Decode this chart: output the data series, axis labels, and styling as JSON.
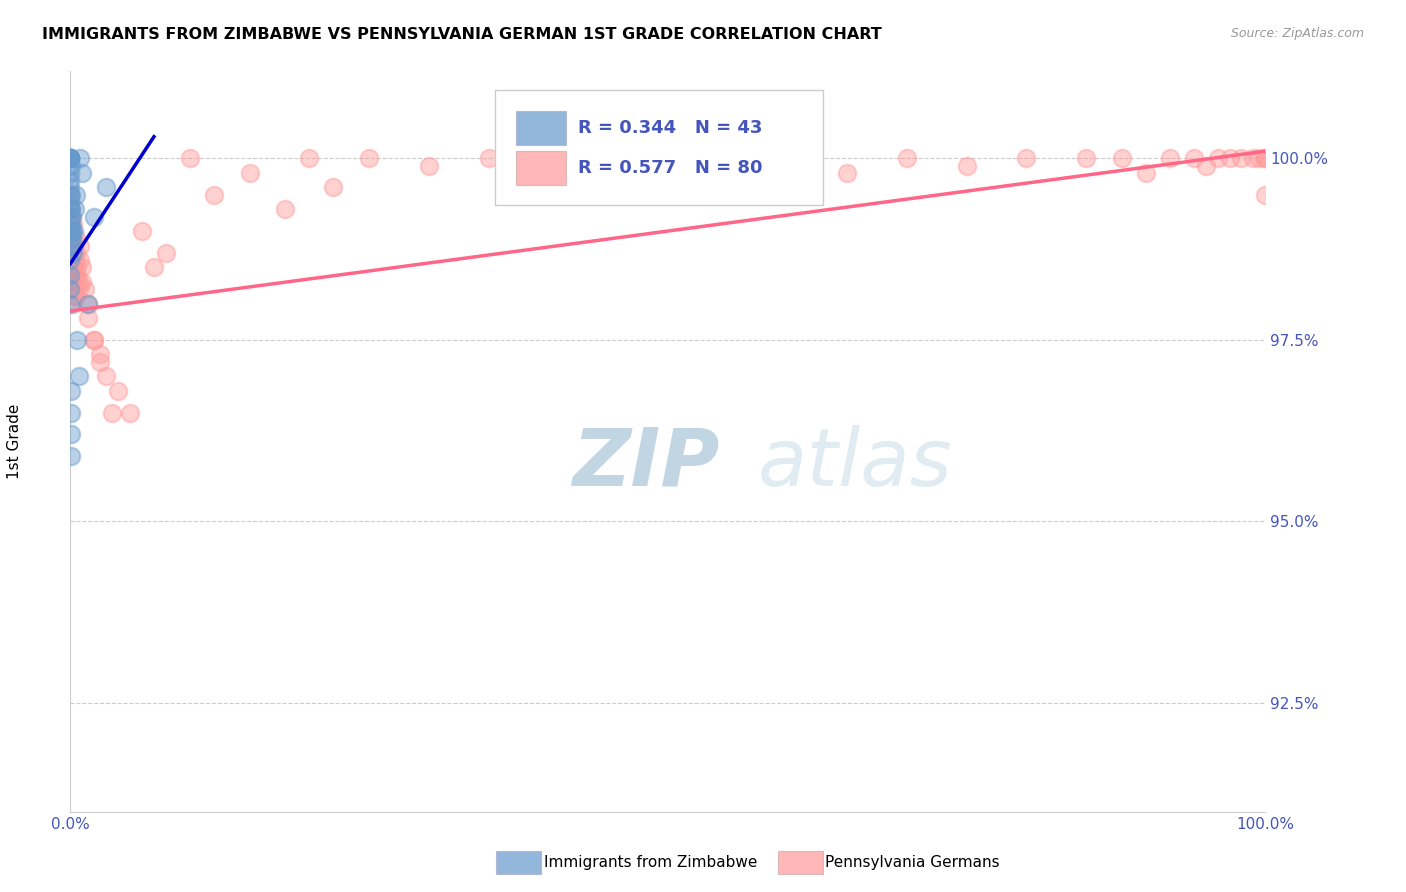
{
  "title": "IMMIGRANTS FROM ZIMBABWE VS PENNSYLVANIA GERMAN 1ST GRADE CORRELATION CHART",
  "source": "Source: ZipAtlas.com",
  "ylabel": "1st Grade",
  "yticks": [
    92.5,
    95.0,
    97.5,
    100.0
  ],
  "ytick_labels": [
    "92.5%",
    "95.0%",
    "97.5%",
    "100.0%"
  ],
  "xlim": [
    0.0,
    100.0
  ],
  "ylim": [
    91.0,
    101.2
  ],
  "legend_blue_r": "R = 0.344",
  "legend_blue_n": "N = 43",
  "legend_pink_r": "R = 0.577",
  "legend_pink_n": "N = 80",
  "blue_color": "#6699CC",
  "pink_color": "#FF9999",
  "blue_line_color": "#0000CC",
  "pink_line_color": "#FF6688",
  "blue_scatter_x": [
    0.0,
    0.0,
    0.0,
    0.0,
    0.0,
    0.0,
    0.0,
    0.0,
    0.0,
    0.0,
    0.0,
    0.0,
    0.0,
    0.0,
    0.0,
    0.0,
    0.0,
    0.0,
    0.0,
    0.05,
    0.05,
    0.05,
    0.08,
    0.1,
    0.12,
    0.15,
    0.18,
    0.2,
    0.25,
    0.3,
    0.4,
    0.5,
    0.6,
    0.7,
    0.8,
    1.0,
    1.5,
    2.0,
    3.0,
    0.05,
    0.05,
    0.08,
    0.1
  ],
  "blue_scatter_y": [
    100.0,
    100.0,
    100.0,
    100.0,
    100.0,
    100.0,
    99.8,
    99.6,
    99.4,
    99.2,
    99.0,
    98.8,
    98.6,
    98.4,
    98.2,
    98.0,
    99.7,
    99.5,
    99.3,
    99.9,
    99.5,
    99.0,
    99.3,
    99.1,
    98.9,
    99.2,
    99.0,
    98.8,
    98.7,
    99.0,
    99.3,
    99.5,
    97.5,
    97.0,
    100.0,
    99.8,
    98.0,
    99.2,
    99.6,
    96.8,
    96.5,
    96.2,
    95.9
  ],
  "pink_scatter_x": [
    0.0,
    0.0,
    0.0,
    0.0,
    0.05,
    0.05,
    0.05,
    0.08,
    0.1,
    0.12,
    0.15,
    0.18,
    0.2,
    0.25,
    0.3,
    0.35,
    0.4,
    0.45,
    0.5,
    0.6,
    0.7,
    0.8,
    1.0,
    1.2,
    1.5,
    2.0,
    2.5,
    3.0,
    4.0,
    5.0,
    6.0,
    8.0,
    10.0,
    12.0,
    15.0,
    18.0,
    20.0,
    25.0,
    30.0,
    35.0,
    40.0,
    45.0,
    50.0,
    55.0,
    60.0,
    65.0,
    70.0,
    75.0,
    80.0,
    85.0,
    88.0,
    90.0,
    92.0,
    94.0,
    95.0,
    96.0,
    97.0,
    98.0,
    99.0,
    99.5,
    100.0,
    100.0,
    100.0,
    0.3,
    0.4,
    0.5,
    0.6,
    0.7,
    0.8,
    1.0,
    1.5,
    2.0,
    2.5,
    0.15,
    0.2,
    0.25,
    0.35,
    3.5,
    7.0,
    22.0
  ],
  "pink_scatter_y": [
    99.5,
    99.2,
    99.0,
    98.7,
    99.3,
    99.1,
    98.8,
    99.0,
    98.7,
    98.5,
    99.2,
    98.9,
    99.1,
    98.7,
    98.8,
    98.5,
    98.6,
    98.9,
    98.7,
    98.5,
    98.3,
    98.8,
    98.5,
    98.2,
    98.0,
    97.5,
    97.3,
    97.0,
    96.8,
    96.5,
    99.0,
    98.7,
    100.0,
    99.5,
    99.8,
    99.3,
    100.0,
    100.0,
    99.9,
    100.0,
    99.7,
    100.0,
    99.5,
    100.0,
    100.0,
    99.8,
    100.0,
    99.9,
    100.0,
    100.0,
    100.0,
    99.8,
    100.0,
    100.0,
    99.9,
    100.0,
    100.0,
    100.0,
    100.0,
    100.0,
    100.0,
    99.5,
    100.0,
    98.4,
    98.2,
    98.1,
    98.4,
    98.2,
    98.6,
    98.3,
    97.8,
    97.5,
    97.2,
    98.3,
    98.0,
    98.5,
    98.1,
    96.5,
    98.5,
    99.6
  ],
  "blue_trendline_x": [
    0.0,
    7.0
  ],
  "blue_trendline_y": [
    98.55,
    100.3
  ],
  "pink_trendline_x": [
    0.0,
    100.0
  ],
  "pink_trendline_y": [
    97.9,
    100.1
  ],
  "watermark_zip": "ZIP",
  "watermark_atlas": "atlas",
  "title_fontsize": 11.5,
  "legend_fontsize": 13,
  "axis_label_color": "#4455BB",
  "tick_color": "#4455BB",
  "bottom_legend_labels": [
    "Immigrants from Zimbabwe",
    "Pennsylvania Germans"
  ],
  "bottom_legend_colors": [
    "#6699CC",
    "#FF9999"
  ]
}
